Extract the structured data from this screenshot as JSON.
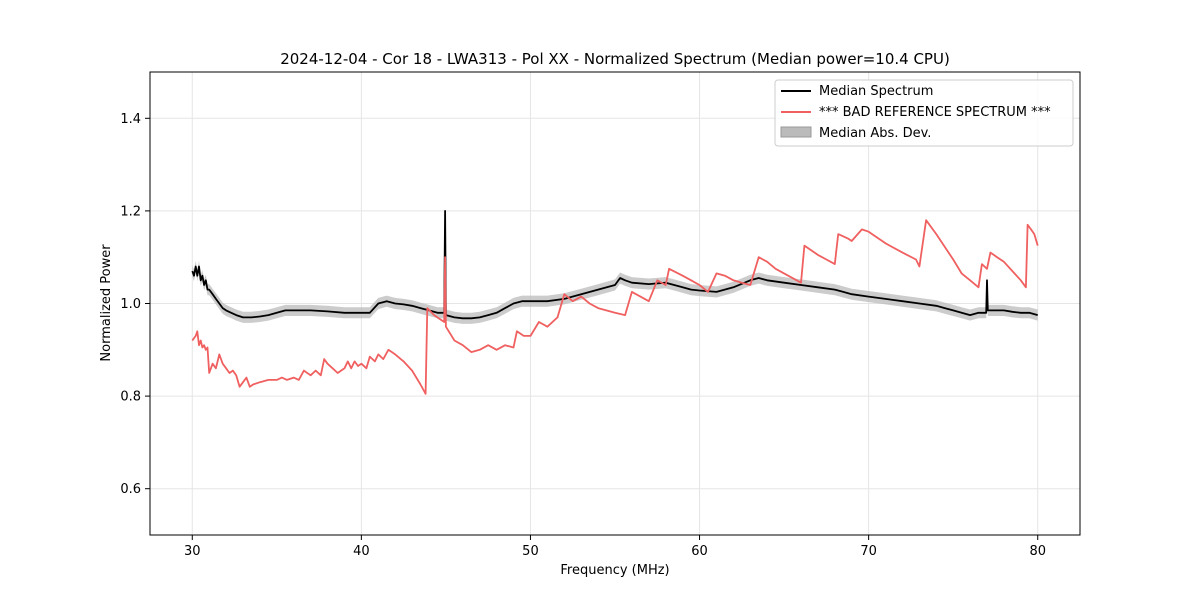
{
  "chart_data": {
    "type": "line",
    "title": "2024-12-04 - Cor 18 - LWA313 - Pol XX - Normalized Spectrum (Median power=10.4 CPU)",
    "xlabel": "Frequency (MHz)",
    "ylabel": "Normalized Power",
    "xlim": [
      27.5,
      82.5
    ],
    "ylim": [
      0.5,
      1.5
    ],
    "xticks": [
      30,
      40,
      50,
      60,
      70,
      80
    ],
    "xtick_labels": [
      "30",
      "40",
      "50",
      "60",
      "70",
      "80"
    ],
    "yticks": [
      0.6,
      0.8,
      1.0,
      1.2,
      1.4
    ],
    "ytick_labels": [
      "0.6",
      "0.8",
      "1.0",
      "1.2",
      "1.4"
    ],
    "grid": true,
    "legend_position": "top-right",
    "series": [
      {
        "name": "Median Spectrum",
        "color": "#000000",
        "points": [
          [
            30.0,
            1.07
          ],
          [
            30.1,
            1.06
          ],
          [
            30.2,
            1.08
          ],
          [
            30.3,
            1.06
          ],
          [
            30.4,
            1.08
          ],
          [
            30.5,
            1.05
          ],
          [
            30.6,
            1.06
          ],
          [
            30.7,
            1.04
          ],
          [
            30.8,
            1.05
          ],
          [
            30.9,
            1.03
          ],
          [
            31.0,
            1.03
          ],
          [
            31.2,
            1.02
          ],
          [
            31.4,
            1.01
          ],
          [
            31.6,
            1.0
          ],
          [
            31.8,
            0.99
          ],
          [
            32.0,
            0.985
          ],
          [
            32.3,
            0.98
          ],
          [
            32.6,
            0.975
          ],
          [
            33.0,
            0.97
          ],
          [
            33.5,
            0.97
          ],
          [
            34.0,
            0.972
          ],
          [
            34.5,
            0.975
          ],
          [
            35.0,
            0.98
          ],
          [
            35.5,
            0.985
          ],
          [
            36.0,
            0.985
          ],
          [
            37.0,
            0.985
          ],
          [
            38.0,
            0.983
          ],
          [
            39.0,
            0.98
          ],
          [
            40.0,
            0.98
          ],
          [
            40.5,
            0.98
          ],
          [
            41.0,
            1.0
          ],
          [
            41.5,
            1.005
          ],
          [
            42.0,
            1.0
          ],
          [
            42.5,
            0.998
          ],
          [
            43.0,
            0.995
          ],
          [
            43.5,
            0.99
          ],
          [
            44.0,
            0.985
          ],
          [
            44.5,
            0.98
          ],
          [
            44.9,
            0.98
          ],
          [
            44.95,
            1.2
          ],
          [
            45.0,
            0.975
          ],
          [
            45.5,
            0.97
          ],
          [
            46.0,
            0.968
          ],
          [
            46.5,
            0.968
          ],
          [
            47.0,
            0.97
          ],
          [
            47.5,
            0.975
          ],
          [
            48.0,
            0.98
          ],
          [
            48.5,
            0.99
          ],
          [
            49.0,
            1.0
          ],
          [
            49.5,
            1.005
          ],
          [
            50.0,
            1.005
          ],
          [
            51.0,
            1.005
          ],
          [
            52.0,
            1.01
          ],
          [
            53.0,
            1.02
          ],
          [
            54.0,
            1.03
          ],
          [
            55.0,
            1.04
          ],
          [
            55.3,
            1.055
          ],
          [
            55.6,
            1.05
          ],
          [
            56.0,
            1.045
          ],
          [
            57.0,
            1.042
          ],
          [
            58.0,
            1.045
          ],
          [
            58.5,
            1.04
          ],
          [
            59.0,
            1.035
          ],
          [
            59.5,
            1.03
          ],
          [
            60.0,
            1.028
          ],
          [
            61.0,
            1.025
          ],
          [
            62.0,
            1.035
          ],
          [
            63.0,
            1.05
          ],
          [
            63.5,
            1.055
          ],
          [
            64.0,
            1.05
          ],
          [
            65.0,
            1.045
          ],
          [
            66.0,
            1.04
          ],
          [
            67.0,
            1.035
          ],
          [
            68.0,
            1.03
          ],
          [
            68.5,
            1.025
          ],
          [
            69.0,
            1.02
          ],
          [
            70.0,
            1.015
          ],
          [
            71.0,
            1.01
          ],
          [
            72.0,
            1.005
          ],
          [
            73.0,
            1.0
          ],
          [
            74.0,
            0.995
          ],
          [
            74.5,
            0.99
          ],
          [
            75.0,
            0.985
          ],
          [
            75.5,
            0.98
          ],
          [
            76.0,
            0.975
          ],
          [
            76.5,
            0.98
          ],
          [
            76.95,
            0.98
          ],
          [
            77.0,
            1.05
          ],
          [
            77.05,
            0.985
          ],
          [
            77.5,
            0.985
          ],
          [
            78.0,
            0.985
          ],
          [
            78.5,
            0.982
          ],
          [
            79.0,
            0.98
          ],
          [
            79.5,
            0.98
          ],
          [
            80.0,
            0.975
          ]
        ]
      },
      {
        "name": "*** BAD REFERENCE SPECTRUM ***",
        "color": "#f06060",
        "points": [
          [
            30.0,
            0.92
          ],
          [
            30.2,
            0.93
          ],
          [
            30.3,
            0.94
          ],
          [
            30.4,
            0.91
          ],
          [
            30.5,
            0.92
          ],
          [
            30.6,
            0.905
          ],
          [
            30.7,
            0.91
          ],
          [
            30.8,
            0.9
          ],
          [
            30.9,
            0.905
          ],
          [
            31.0,
            0.85
          ],
          [
            31.2,
            0.87
          ],
          [
            31.4,
            0.86
          ],
          [
            31.6,
            0.89
          ],
          [
            31.8,
            0.87
          ],
          [
            32.0,
            0.86
          ],
          [
            32.2,
            0.85
          ],
          [
            32.4,
            0.855
          ],
          [
            32.6,
            0.845
          ],
          [
            32.8,
            0.82
          ],
          [
            33.0,
            0.83
          ],
          [
            33.2,
            0.84
          ],
          [
            33.4,
            0.82
          ],
          [
            33.6,
            0.825
          ],
          [
            34.0,
            0.83
          ],
          [
            34.5,
            0.835
          ],
          [
            35.0,
            0.835
          ],
          [
            35.3,
            0.84
          ],
          [
            35.6,
            0.835
          ],
          [
            36.0,
            0.84
          ],
          [
            36.3,
            0.835
          ],
          [
            36.6,
            0.855
          ],
          [
            37.0,
            0.845
          ],
          [
            37.3,
            0.855
          ],
          [
            37.6,
            0.845
          ],
          [
            37.8,
            0.88
          ],
          [
            38.0,
            0.87
          ],
          [
            38.3,
            0.86
          ],
          [
            38.6,
            0.85
          ],
          [
            39.0,
            0.86
          ],
          [
            39.2,
            0.875
          ],
          [
            39.4,
            0.86
          ],
          [
            39.6,
            0.875
          ],
          [
            39.8,
            0.865
          ],
          [
            40.0,
            0.87
          ],
          [
            40.3,
            0.86
          ],
          [
            40.5,
            0.885
          ],
          [
            40.8,
            0.875
          ],
          [
            41.0,
            0.89
          ],
          [
            41.3,
            0.88
          ],
          [
            41.6,
            0.9
          ],
          [
            42.0,
            0.89
          ],
          [
            42.5,
            0.875
          ],
          [
            43.0,
            0.855
          ],
          [
            43.5,
            0.825
          ],
          [
            43.8,
            0.805
          ],
          [
            43.9,
            0.99
          ],
          [
            44.3,
            0.975
          ],
          [
            44.9,
            0.96
          ],
          [
            44.95,
            1.1
          ],
          [
            45.0,
            0.95
          ],
          [
            45.5,
            0.92
          ],
          [
            46.0,
            0.91
          ],
          [
            46.5,
            0.895
          ],
          [
            47.0,
            0.9
          ],
          [
            47.5,
            0.91
          ],
          [
            48.0,
            0.9
          ],
          [
            48.5,
            0.91
          ],
          [
            49.0,
            0.905
          ],
          [
            49.2,
            0.94
          ],
          [
            49.6,
            0.93
          ],
          [
            50.0,
            0.93
          ],
          [
            50.5,
            0.96
          ],
          [
            51.0,
            0.95
          ],
          [
            51.6,
            0.97
          ],
          [
            52.0,
            1.02
          ],
          [
            52.5,
            1.005
          ],
          [
            53.0,
            1.015
          ],
          [
            53.5,
            1.0
          ],
          [
            54.0,
            0.99
          ],
          [
            55.0,
            0.98
          ],
          [
            55.6,
            0.975
          ],
          [
            56.0,
            1.025
          ],
          [
            56.5,
            1.015
          ],
          [
            57.0,
            1.005
          ],
          [
            57.5,
            1.05
          ],
          [
            58.0,
            1.04
          ],
          [
            58.2,
            1.075
          ],
          [
            59.0,
            1.06
          ],
          [
            59.5,
            1.05
          ],
          [
            60.0,
            1.04
          ],
          [
            60.5,
            1.025
          ],
          [
            61.0,
            1.065
          ],
          [
            61.5,
            1.06
          ],
          [
            62.0,
            1.05
          ],
          [
            62.5,
            1.045
          ],
          [
            63.0,
            1.04
          ],
          [
            63.5,
            1.1
          ],
          [
            64.0,
            1.09
          ],
          [
            64.5,
            1.075
          ],
          [
            65.0,
            1.065
          ],
          [
            66.0,
            1.045
          ],
          [
            66.2,
            1.125
          ],
          [
            67.0,
            1.105
          ],
          [
            67.5,
            1.095
          ],
          [
            68.0,
            1.085
          ],
          [
            68.2,
            1.15
          ],
          [
            68.8,
            1.14
          ],
          [
            69.0,
            1.135
          ],
          [
            69.6,
            1.16
          ],
          [
            70.0,
            1.155
          ],
          [
            71.0,
            1.13
          ],
          [
            72.0,
            1.11
          ],
          [
            72.8,
            1.095
          ],
          [
            73.0,
            1.08
          ],
          [
            73.4,
            1.18
          ],
          [
            74.0,
            1.15
          ],
          [
            75.0,
            1.095
          ],
          [
            75.5,
            1.065
          ],
          [
            76.0,
            1.05
          ],
          [
            76.5,
            1.035
          ],
          [
            76.7,
            1.085
          ],
          [
            77.0,
            1.075
          ],
          [
            77.2,
            1.11
          ],
          [
            77.4,
            1.105
          ],
          [
            77.6,
            1.1
          ],
          [
            78.0,
            1.09
          ],
          [
            78.5,
            1.07
          ],
          [
            79.0,
            1.05
          ],
          [
            79.3,
            1.035
          ],
          [
            79.4,
            1.17
          ],
          [
            79.6,
            1.16
          ],
          [
            79.8,
            1.15
          ],
          [
            80.0,
            1.125
          ]
        ]
      },
      {
        "name": "Median Abs. Dev.",
        "type": "band",
        "color": "#bbbbbb",
        "spread": 0.012
      }
    ]
  }
}
